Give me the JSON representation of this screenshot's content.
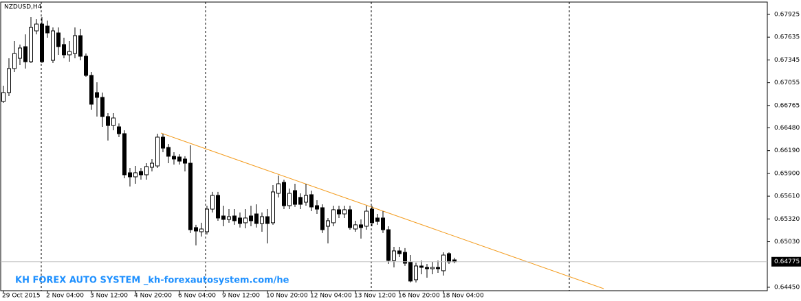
{
  "chart_data": {
    "type": "candlestick",
    "title": "NZDUSD,H4",
    "annotation": "KH FOREX AUTO SYSTEM _kh-forexautosystem.com/he",
    "current_price": 0.64775,
    "current_price_label": "0.64775",
    "categories": [
      "29 Oct 2015",
      null,
      null,
      null,
      null,
      null,
      null,
      null,
      "2 Nov 04:00",
      null,
      null,
      null,
      null,
      null,
      null,
      null,
      "3 Nov 12:00",
      null,
      null,
      null,
      null,
      null,
      null,
      null,
      "4 Nov 20:00",
      null,
      null,
      null,
      null,
      null,
      null,
      null,
      "6 Nov 04:00",
      null,
      null,
      null,
      null,
      null,
      null,
      null,
      "9 Nov 12:00",
      null,
      null,
      null,
      null,
      null,
      null,
      null,
      "10 Nov 20:00",
      null,
      null,
      null,
      null,
      null,
      null,
      null,
      "12 Nov 04:00",
      null,
      null,
      null,
      null,
      null,
      null,
      null,
      "13 Nov 12:00",
      null,
      null,
      null,
      null,
      null,
      null,
      null,
      "16 Nov 20:00",
      null,
      null,
      null,
      null,
      null,
      null,
      null,
      "18 Nov 04:00",
      null,
      null
    ],
    "open": [
      0.66816,
      0.66929,
      0.67235,
      0.67366,
      0.67514,
      0.67322,
      0.67715,
      0.67802,
      0.67776,
      0.6734,
      0.67689,
      0.67541,
      0.6741,
      0.67427,
      0.67654,
      0.67392,
      0.67148,
      0.66929,
      0.66868,
      0.66624,
      0.6651,
      0.66493,
      0.66406,
      0.65908,
      0.65856,
      0.65925,
      0.65882,
      0.65978,
      0.65995,
      0.66362,
      0.66231,
      0.66118,
      0.66109,
      0.66083,
      0.6603,
      0.6521,
      0.65157,
      0.65157,
      0.65445,
      0.6562,
      0.65358,
      0.65314,
      0.65358,
      0.65332,
      0.65271,
      0.65358,
      0.65384,
      0.65262,
      0.65349,
      0.65271,
      0.65646,
      0.65786,
      0.65489,
      0.65681,
      0.65594,
      0.65533,
      0.65629,
      0.65489,
      0.65463,
      0.65227,
      0.65271,
      0.65437,
      0.65384,
      0.65437,
      0.65192,
      0.65245,
      0.65227,
      0.65445,
      0.65332,
      0.65332,
      0.65183,
      0.64791,
      0.64913,
      0.64895,
      0.64773,
      0.64546,
      0.64721,
      0.64703,
      0.64686,
      0.64703,
      0.6466,
      0.64878,
      0.64799
    ],
    "high": [
      0.67017,
      0.67366,
      0.67584,
      0.67541,
      0.67671,
      0.6789,
      0.67864,
      0.6789,
      0.67846,
      0.67759,
      0.67759,
      0.67628,
      0.67584,
      0.67759,
      0.67741,
      0.67427,
      0.67191,
      0.6706,
      0.66929,
      0.66668,
      0.66668,
      0.66537,
      0.66449,
      0.65969,
      0.65995,
      0.65969,
      0.6603,
      0.66083,
      0.66406,
      0.66406,
      0.66275,
      0.6617,
      0.66144,
      0.66118,
      0.66257,
      0.65245,
      0.65271,
      0.65489,
      0.65664,
      0.65664,
      0.65489,
      0.65445,
      0.65445,
      0.65402,
      0.65445,
      0.65489,
      0.65506,
      0.65402,
      0.65445,
      0.65751,
      0.65873,
      0.65821,
      0.65707,
      0.65768,
      0.65646,
      0.65768,
      0.65681,
      0.65559,
      0.65506,
      0.65332,
      0.65489,
      0.65489,
      0.65489,
      0.65489,
      0.65297,
      0.65314,
      0.65489,
      0.65489,
      0.65384,
      0.65419,
      0.65227,
      0.64965,
      0.64965,
      0.64948,
      0.6486,
      0.64764,
      0.64791,
      0.64747,
      0.64773,
      0.64791,
      0.64895,
      0.64895,
      0.64826
    ],
    "low": [
      0.66798,
      0.66886,
      0.67191,
      0.67279,
      0.67235,
      0.67305,
      0.67671,
      0.67305,
      0.67628,
      0.67305,
      0.6741,
      0.67366,
      0.67322,
      0.67366,
      0.6734,
      0.6713,
      0.66711,
      0.66624,
      0.66493,
      0.66318,
      0.66449,
      0.66362,
      0.65838,
      0.65733,
      0.65768,
      0.65821,
      0.65821,
      0.65925,
      0.65969,
      0.6617,
      0.6603,
      0.66013,
      0.66013,
      0.65925,
      0.6514,
      0.64983,
      0.65096,
      0.65122,
      0.65402,
      0.65297,
      0.65227,
      0.65271,
      0.65245,
      0.6521,
      0.65201,
      0.65227,
      0.6521,
      0.65157,
      0.65009,
      0.65245,
      0.65594,
      0.65445,
      0.65445,
      0.65472,
      0.65445,
      0.65489,
      0.65419,
      0.65384,
      0.6514,
      0.65009,
      0.65227,
      0.65332,
      0.65332,
      0.65183,
      0.65157,
      0.6507,
      0.65183,
      0.65227,
      0.65245,
      0.6514,
      0.64747,
      0.64703,
      0.64834,
      0.64721,
      0.64511,
      0.64511,
      0.64616,
      0.64572,
      0.64616,
      0.64633,
      0.64599,
      0.64747,
      0.64756
    ],
    "close": [
      0.66929,
      0.67235,
      0.67427,
      0.67497,
      0.67322,
      0.67759,
      0.67802,
      0.67322,
      0.67689,
      0.67715,
      0.67514,
      0.6741,
      0.67453,
      0.67654,
      0.67392,
      0.67148,
      0.66781,
      0.66868,
      0.66624,
      0.6651,
      0.66606,
      0.66406,
      0.65882,
      0.65856,
      0.65908,
      0.65882,
      0.65987,
      0.6603,
      0.66362,
      0.66222,
      0.66118,
      0.66083,
      0.66056,
      0.6603,
      0.65183,
      0.65166,
      0.65192,
      0.65445,
      0.6562,
      0.65332,
      0.65314,
      0.65349,
      0.65297,
      0.65262,
      0.65332,
      0.65297,
      0.65262,
      0.65349,
      0.65262,
      0.65664,
      0.65768,
      0.65489,
      0.65646,
      0.65506,
      0.65506,
      0.6562,
      0.65472,
      0.65445,
      0.65183,
      0.65297,
      0.65437,
      0.65384,
      0.65437,
      0.6521,
      0.65245,
      0.6521,
      0.65419,
      0.65271,
      0.65288,
      0.65183,
      0.64791,
      0.64913,
      0.64878,
      0.64756,
      0.64529,
      0.64721,
      0.64703,
      0.64686,
      0.64703,
      0.64686,
      0.6486,
      0.64773,
      0.64775
    ],
    "ylim": [
      0.64406,
      0.68082
    ],
    "yticks": [
      0.67925,
      0.67635,
      0.67345,
      0.67055,
      0.66765,
      {
        "value": 0.6648,
        "label": "0.66480"
      },
      {
        "value": 0.6619,
        "label": "0.66190"
      },
      {
        "value": 0.659,
        "label": "0.65900"
      },
      {
        "value": 0.6561,
        "label": "0.65610"
      },
      {
        "value": 0.6532,
        "label": "0.65320"
      },
      {
        "value": 0.6503,
        "label": "0.65030"
      },
      {
        "value": 0.6445,
        "label": "0.64450"
      }
    ],
    "up_color": "#ffffff",
    "down_color": "#000000"
  }
}
